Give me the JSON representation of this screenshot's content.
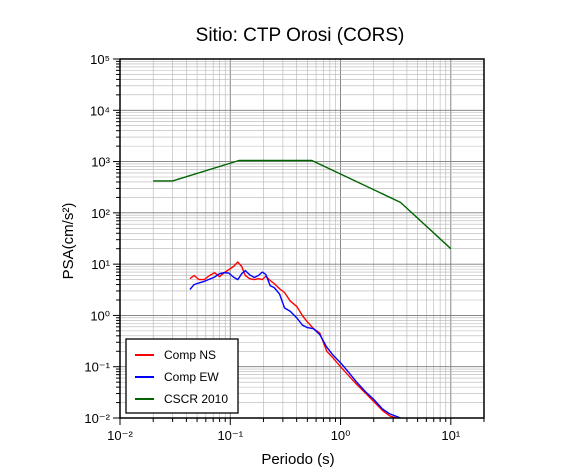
{
  "chart_data": {
    "type": "line",
    "title": "Sitio: CTP Orosi (CORS)",
    "xlabel": "Periodo (s)",
    "ylabel": "PSA(cm/s²)",
    "xscale": "log",
    "yscale": "log",
    "xlim": [
      0.01,
      20
    ],
    "ylim": [
      0.01,
      100000
    ],
    "x_tick_labels": [
      "10⁻²",
      "10⁻¹",
      "10⁰",
      "10¹"
    ],
    "y_tick_labels": [
      "10⁻²",
      "10⁻¹",
      "10⁰",
      "10¹",
      "10²",
      "10³",
      "10⁴",
      "10⁵"
    ],
    "grid": true,
    "legend_position": "bottom-left",
    "series": [
      {
        "name": "Comp NS",
        "color": "#ff0000",
        "x": [
          0.043,
          0.047,
          0.052,
          0.058,
          0.065,
          0.072,
          0.08,
          0.088,
          0.097,
          0.107,
          0.117,
          0.127,
          0.137,
          0.15,
          0.165,
          0.18,
          0.195,
          0.21,
          0.23,
          0.25,
          0.28,
          0.31,
          0.35,
          0.4,
          0.45,
          0.5,
          0.57,
          0.65,
          0.75,
          0.85,
          1.0,
          1.2,
          1.4,
          1.7,
          2.0,
          2.4,
          2.8,
          3.3,
          3.5
        ],
        "y": [
          5.2,
          6.0,
          5.0,
          5.0,
          6.0,
          6.8,
          5.7,
          6.8,
          7.8,
          9.0,
          11.0,
          9.0,
          6.0,
          5.2,
          5.0,
          5.2,
          5.0,
          5.8,
          4.8,
          4.2,
          3.3,
          2.8,
          1.9,
          1.5,
          1.0,
          0.75,
          0.55,
          0.45,
          0.2,
          0.15,
          0.1,
          0.065,
          0.045,
          0.03,
          0.021,
          0.014,
          0.011,
          0.0098,
          0.0093
        ]
      },
      {
        "name": "Comp EW",
        "color": "#0000ff",
        "x": [
          0.043,
          0.047,
          0.052,
          0.058,
          0.065,
          0.072,
          0.08,
          0.088,
          0.097,
          0.107,
          0.117,
          0.127,
          0.137,
          0.15,
          0.165,
          0.18,
          0.195,
          0.21,
          0.23,
          0.25,
          0.28,
          0.31,
          0.35,
          0.4,
          0.45,
          0.5,
          0.57,
          0.65,
          0.75,
          0.85,
          1.0,
          1.2,
          1.4,
          1.7,
          2.0,
          2.4,
          2.8,
          3.3,
          3.5
        ],
        "y": [
          3.2,
          4.0,
          4.3,
          4.6,
          5.1,
          5.6,
          6.5,
          6.8,
          6.7,
          5.6,
          5.0,
          6.5,
          7.5,
          6.2,
          5.5,
          6.0,
          7.0,
          6.3,
          3.8,
          3.5,
          2.6,
          1.4,
          1.2,
          0.9,
          0.65,
          0.58,
          0.55,
          0.42,
          0.24,
          0.17,
          0.12,
          0.075,
          0.05,
          0.032,
          0.023,
          0.015,
          0.012,
          0.0105,
          0.01
        ]
      },
      {
        "name": "CSCR 2010",
        "color": "#006400",
        "x": [
          0.02,
          0.03,
          0.12,
          0.55,
          3.5,
          10
        ],
        "y": [
          420,
          420,
          1050,
          1050,
          160,
          20
        ]
      }
    ]
  }
}
